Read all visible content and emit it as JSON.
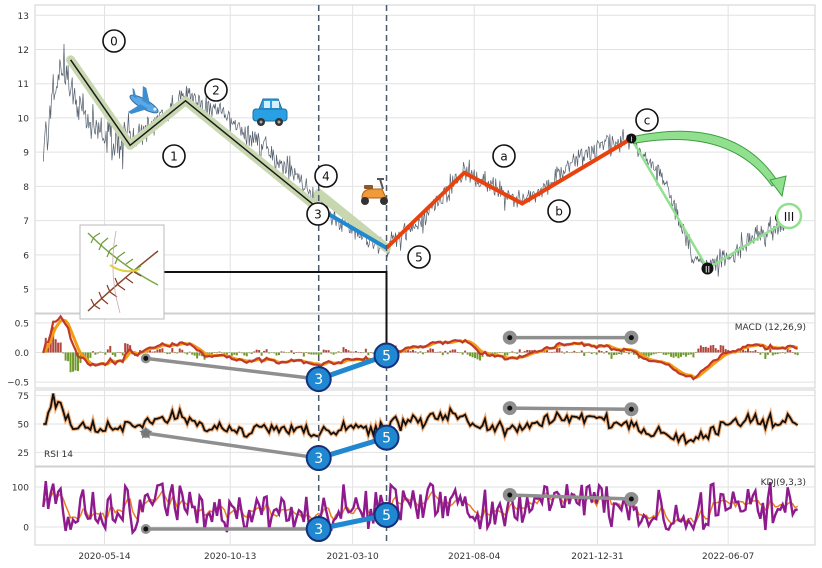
{
  "chart_data": [
    {
      "type": "line",
      "panel": "price",
      "title": "",
      "xlabel": "",
      "ylabel": "",
      "ylim": [
        4.3,
        13.3
      ],
      "yticks": [
        "5",
        "6",
        "7",
        "8",
        "9",
        "10",
        "11",
        "12",
        "13"
      ],
      "xticks": [
        "2020-05-14",
        "2020-10-13",
        "2021-03-10",
        "2021-08-04",
        "2021-12-31",
        "2022-06-07"
      ],
      "grid": true,
      "price_series": {
        "x_start": "2020-03-01",
        "x_end": "2022-08-31",
        "anchors": [
          [
            "2020-03-01",
            9.0
          ],
          [
            "2020-03-20",
            11.6
          ],
          [
            "2020-05-05",
            9.6
          ],
          [
            "2020-06-14",
            9.2
          ],
          [
            "2020-08-20",
            10.7
          ],
          [
            "2020-10-20",
            9.8
          ],
          [
            "2021-01-05",
            8.2
          ],
          [
            "2021-01-25",
            7.6
          ],
          [
            "2021-03-10",
            6.7
          ],
          [
            "2021-04-20",
            6.2
          ],
          [
            "2021-05-25",
            6.8
          ],
          [
            "2021-07-23",
            8.4
          ],
          [
            "2021-10-01",
            7.5
          ],
          [
            "2021-12-10",
            8.9
          ],
          [
            "2022-02-10",
            9.4
          ],
          [
            "2022-03-20",
            8.2
          ],
          [
            "2022-04-25",
            6.0
          ],
          [
            "2022-05-13",
            5.6
          ],
          [
            "2022-07-01",
            6.4
          ],
          [
            "2022-08-31",
            7.1
          ]
        ]
      },
      "waves": [
        {
          "label": "0",
          "x": "2020-04-03",
          "y": 11.7
        },
        {
          "label": "1",
          "x": "2020-06-14",
          "y": 9.2
        },
        {
          "label": "2",
          "x": "2020-08-20",
          "y": 10.5
        },
        {
          "label": "3",
          "x": "2021-01-25",
          "y": 7.4
        },
        {
          "label": "4",
          "x": "2021-01-28",
          "y": 7.8
        },
        {
          "label": "5",
          "x": "2021-04-20",
          "y": 6.2
        },
        {
          "label": "a",
          "x": "2021-07-23",
          "y": 8.4
        },
        {
          "label": "b",
          "x": "2021-10-01",
          "y": 7.5
        },
        {
          "label": "c",
          "x": "2022-02-10",
          "y": 9.4
        }
      ],
      "wave_labels": [
        "0",
        "1",
        "2",
        "3",
        "4",
        "5",
        "a",
        "b",
        "c",
        "I",
        "II",
        "III"
      ],
      "vlines": [
        "2021-01-28",
        "2021-04-20"
      ],
      "colors": {
        "price": "#56606e",
        "impulse": "#1a1a1a",
        "impulse_band": "#c8d7b0",
        "corr_wave": "#e8430f",
        "blue_wave": "#1f88d0",
        "projection": "#90e090",
        "projection_edge": "#3d9e3d"
      }
    },
    {
      "type": "bar",
      "panel": "macd",
      "title": "MACD (12,26,9)",
      "ylim": [
        -0.6,
        0.65
      ],
      "yticks": [
        "−0.5",
        "0.0",
        "0.5"
      ],
      "divergences": [
        {
          "x": [
            "2020-07-03",
            "2021-01-28"
          ],
          "y": [
            -0.1,
            -0.45
          ],
          "color": "#8f8f8f"
        },
        {
          "x": [
            "2021-09-16",
            "2022-02-10"
          ],
          "y": [
            0.25,
            0.25
          ],
          "color": "#8f8f8f"
        },
        {
          "x": [
            "2021-01-28",
            "2021-04-20"
          ],
          "y": [
            -0.45,
            -0.05
          ],
          "color": "#1f88d0"
        }
      ]
    },
    {
      "type": "line",
      "panel": "rsi",
      "title": "RSI 14",
      "ylim": [
        13,
        80
      ],
      "yticks": [
        "25",
        "50",
        "75"
      ],
      "divergences": [
        {
          "x": [
            "2020-07-03",
            "2021-01-28"
          ],
          "y": [
            42,
            20
          ],
          "color": "#8f8f8f"
        },
        {
          "x": [
            "2021-09-16",
            "2022-02-10"
          ],
          "y": [
            64,
            63
          ],
          "color": "#8f8f8f"
        },
        {
          "x": [
            "2021-01-28",
            "2021-04-20"
          ],
          "y": [
            20,
            38
          ],
          "color": "#1f88d0"
        }
      ]
    },
    {
      "type": "line",
      "panel": "kdj",
      "title": "KDJ(9,3,3)",
      "ylim": [
        -45,
        150
      ],
      "yticks": [
        "0",
        "100"
      ],
      "divergences": [
        {
          "x": [
            "2020-07-03",
            "2021-01-28"
          ],
          "y": [
            -5,
            -5
          ],
          "color": "#8f8f8f"
        },
        {
          "x": [
            "2021-09-16",
            "2022-02-10"
          ],
          "y": [
            80,
            70
          ],
          "color": "#8f8f8f"
        },
        {
          "x": [
            "2021-01-28",
            "2021-04-20"
          ],
          "y": [
            -5,
            30
          ],
          "color": "#1f88d0"
        }
      ]
    }
  ],
  "icons": [
    "airplane-icon",
    "car-icon",
    "scooter-icon",
    "fern-thumbnail-icon"
  ]
}
